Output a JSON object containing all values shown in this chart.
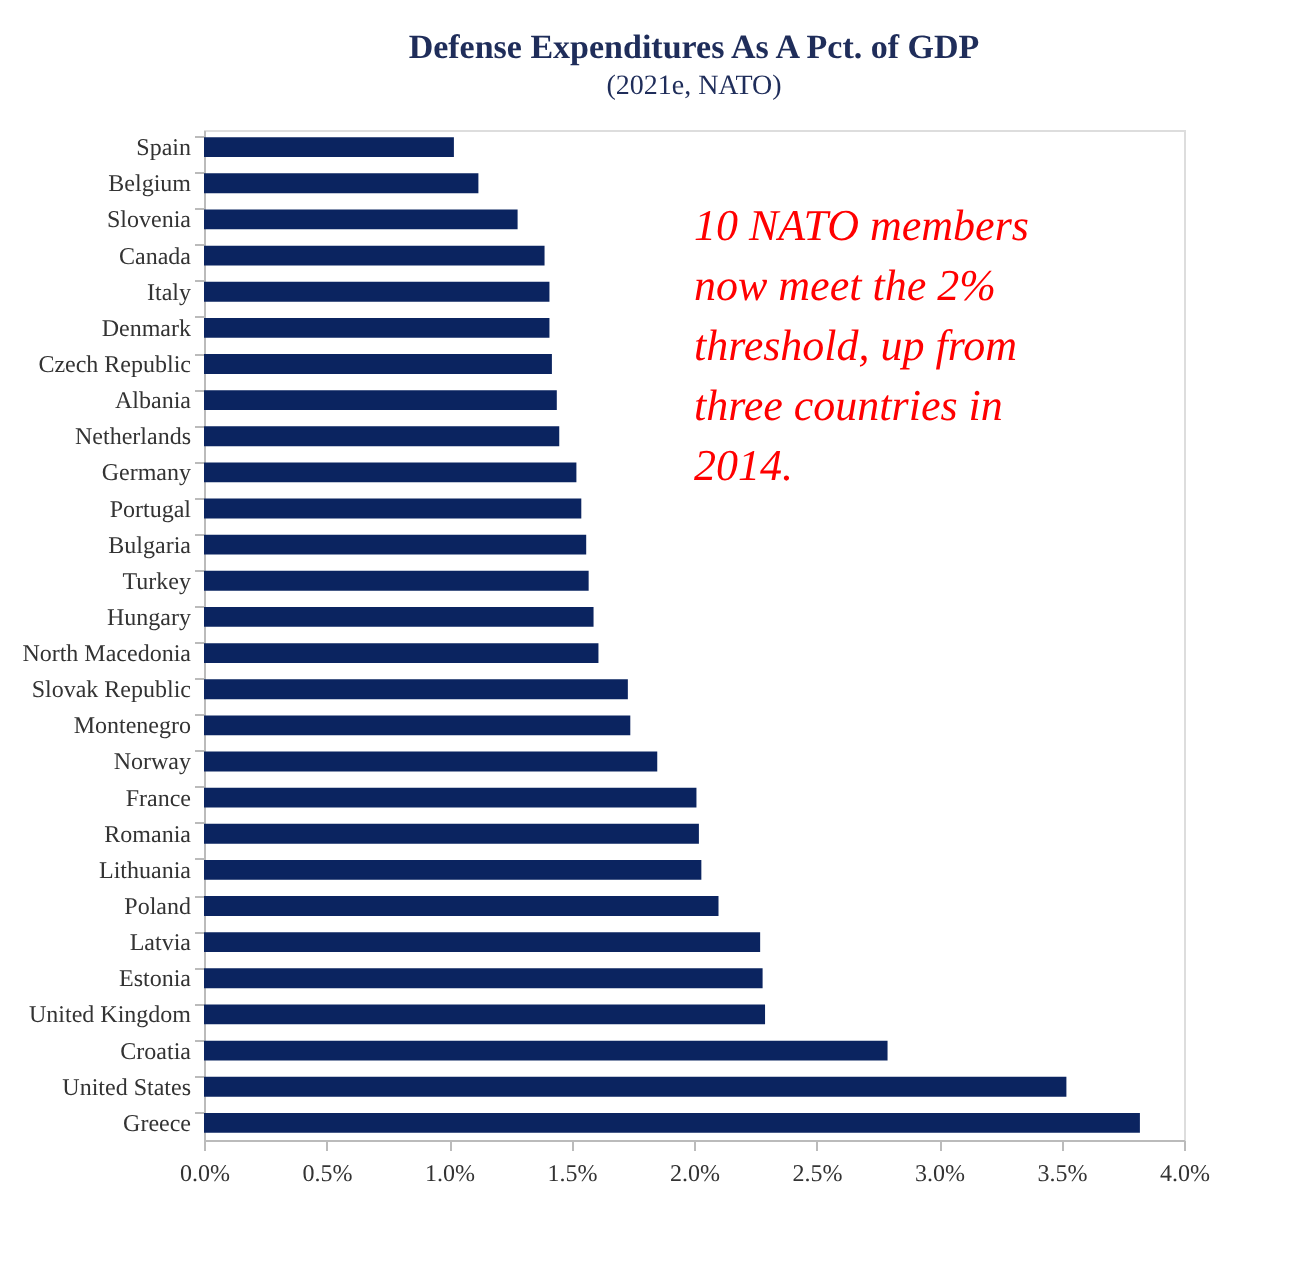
{
  "chart_data": {
    "type": "bar",
    "orientation": "horizontal",
    "title": "Defense Expenditures As A Pct. of GDP",
    "subtitle": "(2021e, NATO)",
    "categories": [
      "Spain",
      "Belgium",
      "Slovenia",
      "Canada",
      "Italy",
      "Denmark",
      "Czech Republic",
      "Albania",
      "Netherlands",
      "Germany",
      "Portugal",
      "Bulgaria",
      "Turkey",
      "Hungary",
      "North Macedonia",
      "Slovak Republic",
      "Montenegro",
      "Norway",
      "France",
      "Romania",
      "Lithuania",
      "Poland",
      "Latvia",
      "Estonia",
      "United Kingdom",
      "Croatia",
      "United States",
      "Greece"
    ],
    "values": [
      1.02,
      1.12,
      1.28,
      1.39,
      1.41,
      1.41,
      1.42,
      1.44,
      1.45,
      1.52,
      1.54,
      1.56,
      1.57,
      1.59,
      1.61,
      1.73,
      1.74,
      1.85,
      2.01,
      2.02,
      2.03,
      2.1,
      2.27,
      2.28,
      2.29,
      2.79,
      3.52,
      3.82
    ],
    "color": "#0b2460",
    "xlim": [
      0,
      4
    ],
    "xticks": [
      {
        "value": 0,
        "label": "0.0%"
      },
      {
        "value": 0.5,
        "label": "0.5%"
      },
      {
        "value": 1,
        "label": "1.0%"
      },
      {
        "value": 1.5,
        "label": "1.5%"
      },
      {
        "value": 2,
        "label": "2.0%"
      },
      {
        "value": 2.5,
        "label": "2.5%"
      },
      {
        "value": 3,
        "label": "3.0%"
      },
      {
        "value": 3.5,
        "label": "3.5%"
      },
      {
        "value": 4,
        "label": "4.0%"
      }
    ],
    "grid": false,
    "annotations": [
      "10 NATO members now meet the 2% threshold, up from three countries in 2014."
    ]
  }
}
